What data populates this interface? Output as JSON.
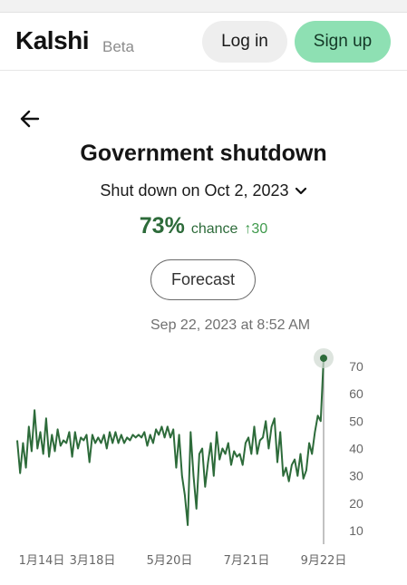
{
  "header": {
    "logo": "Kalshi",
    "beta": "Beta",
    "login_label": "Log in",
    "signup_label": "Sign up"
  },
  "market": {
    "title": "Government shutdown",
    "outcome": "Shut down on Oct 2, 2023",
    "chance_value": "73%",
    "chance_label": "chance",
    "change": "↑30",
    "forecast_label": "Forecast",
    "timestamp": "Sep 22, 2023 at 8:52 AM"
  },
  "colors": {
    "line": "#2d6b3a",
    "signup_bg": "#8ee0b3",
    "up": "#3f9a4c"
  },
  "icons": {
    "back": "arrow-left-icon",
    "dropdown": "chevron-down-icon"
  },
  "chart_data": {
    "type": "line",
    "ylim": [
      5,
      76
    ],
    "yticks": [
      10,
      20,
      30,
      40,
      50,
      60,
      70
    ],
    "xticks": [
      "1月14日",
      "3月18日",
      "5月20日",
      "7月21日",
      "9月22日"
    ],
    "series": [
      {
        "values": [
          43,
          31,
          42,
          33,
          48,
          39,
          54,
          40,
          46,
          38,
          51,
          37,
          45,
          39,
          47,
          41,
          43,
          42,
          46,
          37,
          46,
          40,
          44,
          43,
          45,
          35,
          45,
          42,
          44,
          42,
          45,
          40,
          46,
          42,
          46,
          42,
          45,
          42,
          44,
          43,
          45,
          44,
          45,
          44,
          46,
          41,
          45,
          42,
          47,
          45,
          48,
          44,
          48,
          44,
          47,
          33,
          45,
          30,
          23,
          12,
          46,
          30,
          18,
          38,
          40,
          26,
          35,
          42,
          30,
          46,
          36,
          40,
          38,
          42,
          34,
          39,
          37,
          38,
          34,
          42,
          44,
          38,
          48,
          38,
          43,
          44,
          50,
          40,
          48,
          51,
          35,
          46,
          30,
          33,
          28,
          34,
          36,
          30,
          38,
          29,
          32,
          42,
          38,
          46,
          52,
          50,
          73
        ]
      }
    ],
    "marker_value": 73
  }
}
